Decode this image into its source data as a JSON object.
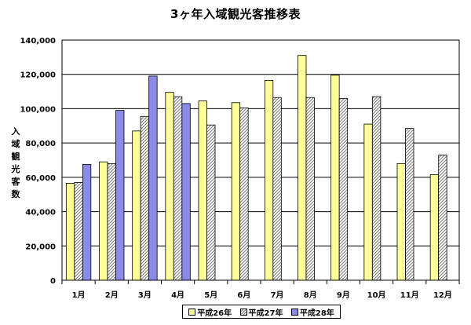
{
  "chart_data": {
    "type": "bar",
    "title": "3ヶ年入域観光客推移表",
    "ylabel": "入域観光客数",
    "xlabel": "",
    "categories": [
      "1月",
      "2月",
      "3月",
      "4月",
      "5月",
      "6月",
      "7月",
      "8月",
      "9月",
      "10月",
      "11月",
      "12月"
    ],
    "ylim": [
      0,
      140000
    ],
    "yticks": [
      "0",
      "20,000",
      "40,000",
      "60,000",
      "80,000",
      "100,000",
      "120,000",
      "140,000"
    ],
    "grid": true,
    "legend_position": "bottom",
    "series": [
      {
        "name": "平成26年",
        "color": "#ffff99",
        "pattern": "solid",
        "values": [
          56500,
          69000,
          87000,
          109500,
          104500,
          103500,
          116500,
          131000,
          119500,
          91000,
          68000,
          61500
        ]
      },
      {
        "name": "平成27年",
        "color": "#ffffff",
        "pattern": "hatched",
        "values": [
          57000,
          68000,
          95500,
          107000,
          90500,
          100500,
          106500,
          106500,
          106000,
          107000,
          88500,
          73000
        ]
      },
      {
        "name": "平成28年",
        "color": "#8a8ae8",
        "pattern": "solid",
        "values": [
          67500,
          99000,
          119000,
          103000,
          null,
          null,
          null,
          null,
          null,
          null,
          null,
          null
        ]
      }
    ]
  }
}
